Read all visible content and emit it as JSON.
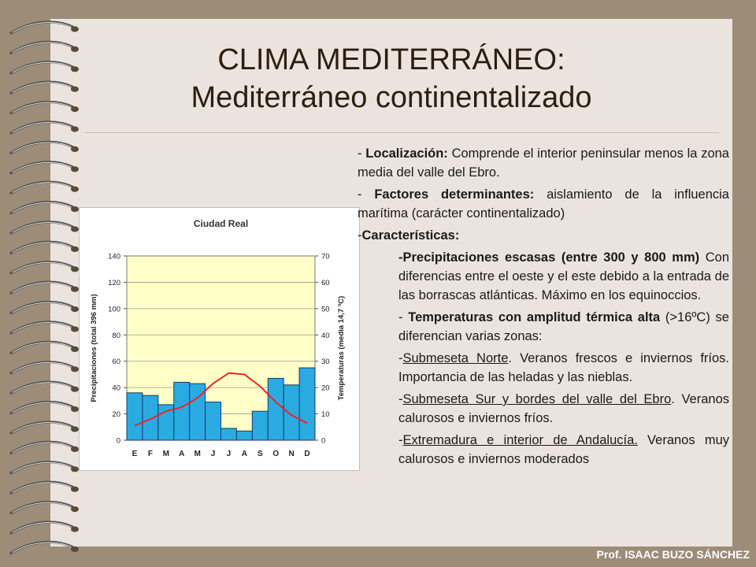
{
  "slide": {
    "title_line1": "CLIMA MEDITERRÁNEO:",
    "title_line2": "Mediterráneo continentalizado",
    "footer": "Prof. ISAAC BUZO SÁNCHEZ"
  },
  "content": {
    "p1_dash": "- ",
    "p1_label": "Localización:",
    "p1_text": " Comprende el interior peninsular menos la zona media del valle del Ebro.",
    "p2_dash": "- ",
    "p2_label": "Factores determinantes:",
    "p2_text": " aislamiento de la influencia marítima (carácter continentalizado)",
    "p3_dash": "-",
    "p3_label": "Características:",
    "precip_dash": "-",
    "precip_label": "Precipitaciones escasas (entre 300 y 800 mm)",
    "precip_text": " Con diferencias entre el oeste y el este debido a la entrada de las borrascas atlánticas. Máximo en los equinoccios.",
    "temp_dash": "- ",
    "temp_label": "Temperaturas con amplitud térmica alta",
    "temp_text": " (>16ºC) se diferencian varias zonas:",
    "norte_dash": "-",
    "norte_label": "Submeseta Norte",
    "norte_text": ". Veranos frescos e inviernos fríos. Importancia de las heladas y las nieblas.",
    "sur_dash": "-",
    "sur_label": "Submeseta Sur y bordes del valle del Ebro",
    "sur_text": ". Veranos calurosos e inviernos fríos.",
    "extre_dash": "-",
    "extre_label": "Extremadura e interior de Andalucía.",
    "extre_text": " Veranos muy calurosos e inviernos moderados"
  },
  "colors": {
    "bar_fill": "#29abe2",
    "line": "#e8262a",
    "plot_bg": "#ffffc8"
  },
  "chart_data": {
    "type": "bar",
    "title": "Ciudad Real",
    "categories": [
      "E",
      "F",
      "M",
      "A",
      "M",
      "J",
      "J",
      "A",
      "S",
      "O",
      "N",
      "D"
    ],
    "series": [
      {
        "type": "bar",
        "axis": "left",
        "values": [
          36,
          34,
          27,
          44,
          43,
          29,
          9,
          7,
          22,
          47,
          42,
          55
        ]
      },
      {
        "type": "line",
        "axis": "right",
        "values": [
          5.5,
          8,
          11,
          12.5,
          16,
          21.5,
          25.5,
          25,
          20.5,
          14.5,
          9.5,
          6.5
        ]
      }
    ],
    "ylabel_left": "Precipitaciones (total 396 mm)",
    "ylabel_right": "Temperaturas (media 14,7 ºC)",
    "ylim_left": [
      0,
      140
    ],
    "ylim_right": [
      0,
      70
    ],
    "yticks_left": [
      0,
      20,
      40,
      60,
      80,
      100,
      120,
      140
    ],
    "yticks_right": [
      0,
      10,
      20,
      30,
      40,
      50,
      60,
      70
    ],
    "grid": true
  }
}
